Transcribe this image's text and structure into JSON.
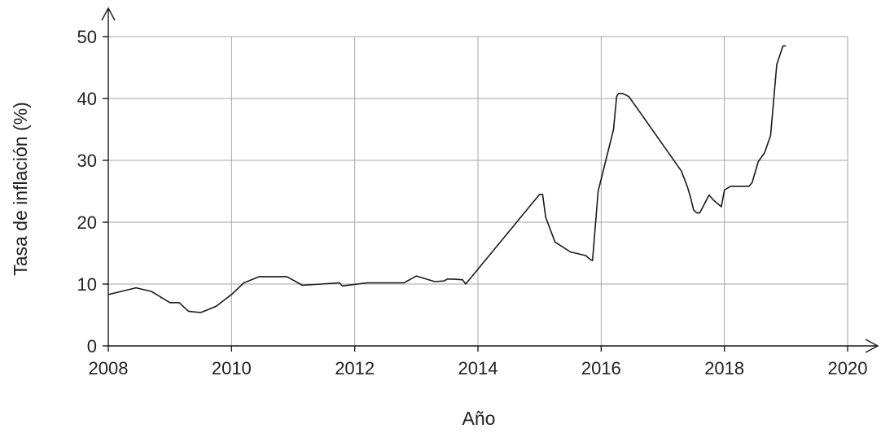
{
  "chart_data": {
    "type": "line",
    "title": "",
    "xlabel": "Año",
    "ylabel": "Tasa de inflación (%)",
    "xlim": [
      2008,
      2020
    ],
    "ylim": [
      0,
      50
    ],
    "xticks": [
      "2008",
      "2010",
      "2012",
      "2014",
      "2016",
      "2018",
      "2020"
    ],
    "yticks": [
      "0",
      "10",
      "20",
      "30",
      "40",
      "50"
    ],
    "grid": true,
    "legend": "none",
    "series": [
      {
        "x": [
          2008.0,
          2008.45,
          2008.7,
          2009.0,
          2009.15,
          2009.3,
          2009.5,
          2009.75,
          2010.0,
          2010.2,
          2010.45,
          2010.6,
          2010.9,
          2011.15,
          2011.75,
          2011.8,
          2012.2,
          2012.8,
          2013.0,
          2013.3,
          2013.45,
          2013.5,
          2013.6,
          2013.75,
          2013.8,
          2015.0,
          2015.05,
          2015.1,
          2015.25,
          2015.5,
          2015.75,
          2015.82,
          2015.86,
          2015.95,
          2016.2,
          2016.25,
          2016.28,
          2016.35,
          2016.45,
          2017.3,
          2017.4,
          2017.45,
          2017.5,
          2017.55,
          2017.6,
          2017.75,
          2017.82,
          2017.95,
          2018.0,
          2018.1,
          2018.4,
          2018.45,
          2018.55,
          2018.65,
          2018.75,
          2018.85,
          2018.95,
          2019.0
        ],
        "y": [
          8.3,
          9.4,
          8.8,
          7.0,
          7.0,
          5.6,
          5.4,
          6.4,
          8.3,
          10.2,
          11.2,
          11.2,
          11.2,
          9.8,
          10.2,
          9.7,
          10.2,
          10.2,
          11.3,
          10.4,
          10.5,
          10.8,
          10.8,
          10.7,
          10.0,
          24.5,
          24.5,
          20.8,
          16.8,
          15.2,
          14.6,
          14.0,
          13.8,
          25.0,
          35.0,
          40.3,
          40.8,
          40.8,
          40.3,
          28.3,
          25.7,
          24.0,
          22.0,
          21.5,
          21.5,
          24.4,
          23.6,
          22.5,
          25.2,
          25.8,
          25.8,
          26.4,
          29.8,
          31.2,
          34.0,
          45.5,
          48.5,
          48.5
        ]
      }
    ]
  }
}
